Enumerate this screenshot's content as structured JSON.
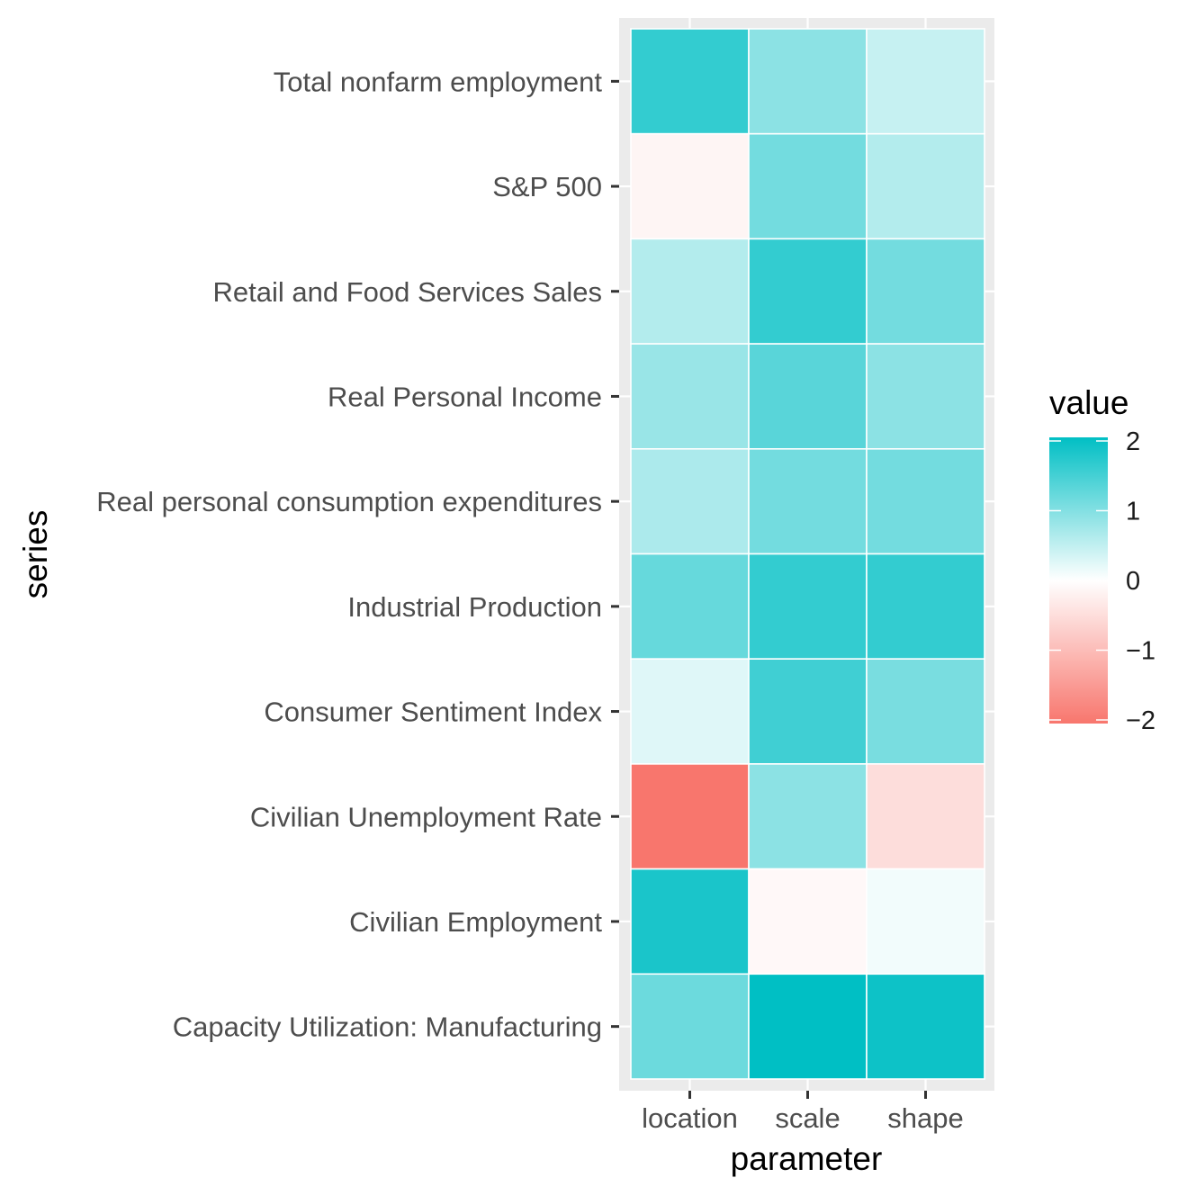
{
  "chart_data": {
    "type": "heatmap",
    "xlabel": "parameter",
    "ylabel": "series",
    "x_categories": [
      "location",
      "scale",
      "shape"
    ],
    "y_categories": [
      "Total nonfarm employment",
      "S&P 500",
      "Retail and Food Services Sales",
      "Real Personal Income",
      "Real personal consumption expenditures",
      "Industrial Production",
      "Consumer Sentiment Index",
      "Civilian Unemployment Rate",
      "Civilian Employment",
      "Capacity Utilization: Manufacturing"
    ],
    "values": [
      [
        1.6,
        0.9,
        0.45
      ],
      [
        -0.15,
        1.1,
        0.6
      ],
      [
        0.6,
        1.6,
        1.1
      ],
      [
        0.8,
        1.3,
        0.9
      ],
      [
        0.65,
        1.1,
        1.1
      ],
      [
        1.2,
        1.6,
        1.6
      ],
      [
        0.25,
        1.5,
        1.05
      ],
      [
        -2.0,
        0.9,
        -0.5
      ],
      [
        1.8,
        -0.1,
        0.1
      ],
      [
        1.15,
        2.3,
        1.9
      ]
    ],
    "legend": {
      "title": "value",
      "ticks": [
        2,
        1,
        0,
        -1,
        -2
      ],
      "tick_labels": [
        "2",
        "1",
        "0",
        "−1",
        "−2"
      ],
      "range": [
        -2,
        2
      ],
      "placement": "right"
    },
    "colors": {
      "low": "#F8766D",
      "mid": "#FFFFFF",
      "high": "#00BFC4",
      "panel_background": "#EBEBEB",
      "grid": "#FFFFFF",
      "tile_border": "#FFFFFF"
    }
  }
}
